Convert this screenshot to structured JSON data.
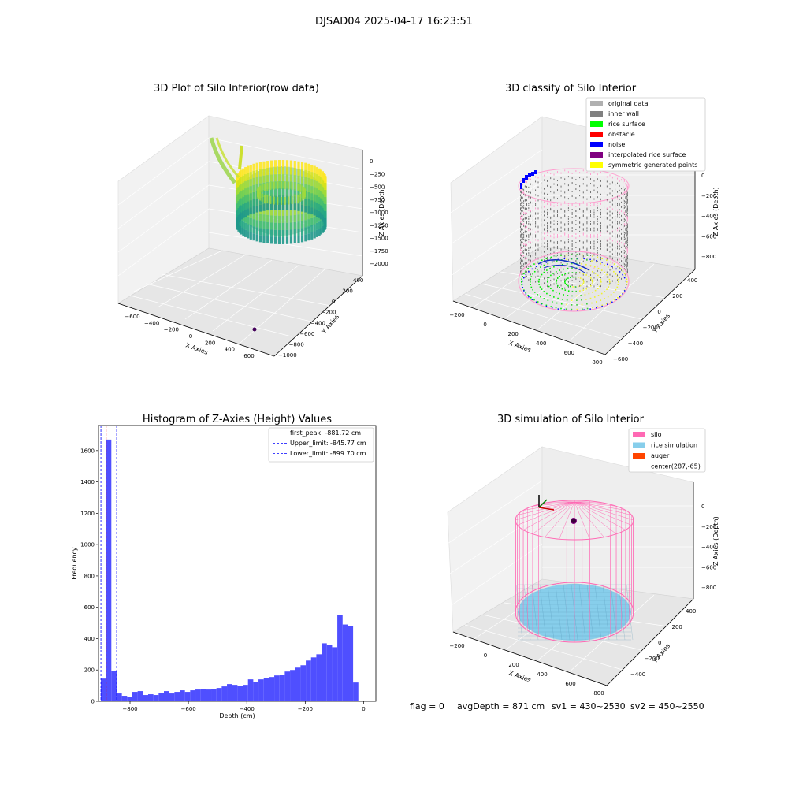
{
  "suptitle": "DJSAD04 2025-04-17 16:23:51",
  "footer": {
    "flag": "flag = 0",
    "avg": "avgDepth = 871 cm",
    "sv1": "sv1 = 430~2530",
    "sv2": "sv2 = 450~2550"
  },
  "colors": {
    "hist_bar": "#4f4fff",
    "peak_line": "#ff0000",
    "limit_line": "#0000ff",
    "silo": "#ff69b4",
    "rice_sim": "#87ceeb",
    "auger": "#ff4500",
    "pane_light": "#f2f2f2",
    "pane_dark": "#e6e6e6"
  },
  "panels": {
    "raw": {
      "title": "3D Plot of Silo Interior(row data)",
      "x_label": "X Axies",
      "y_label": "Y Axies",
      "z_label": "Z Axies (Depth)",
      "x_ticks": [
        "−600",
        "−400",
        "−200",
        "0",
        "200",
        "400",
        "600"
      ],
      "y_ticks": [
        "400",
        "200",
        "0",
        "−200",
        "−400",
        "−600",
        "−800",
        "−1000"
      ],
      "z_ticks": [
        "0",
        "−250",
        "−500",
        "−750",
        "−1000",
        "−1250",
        "−1500",
        "−1750",
        "−2000"
      ]
    },
    "classify": {
      "title": "3D classify of Silo Interior",
      "x_label": "X Axies",
      "y_label": "Y Axies",
      "z_label": "Z Axies (Depth)",
      "x_ticks": [
        "−200",
        "0",
        "200",
        "400",
        "600",
        "800"
      ],
      "y_ticks": [
        "400",
        "200",
        "0",
        "−200",
        "−400",
        "−600"
      ],
      "z_ticks": [
        "0",
        "−200",
        "−400",
        "−600",
        "−800"
      ],
      "legend": [
        {
          "label": "original data",
          "color": "#b0b0b0"
        },
        {
          "label": "inner wall",
          "color": "#808080"
        },
        {
          "label": "rice surface",
          "color": "#00ff00"
        },
        {
          "label": "obstacle",
          "color": "#ff0000"
        },
        {
          "label": "noise",
          "color": "#0000ff"
        },
        {
          "label": "interpolated rice surface",
          "color": "#800080"
        },
        {
          "label": "symmetric generated points",
          "color": "#ffff00"
        }
      ]
    },
    "sim": {
      "title": "3D simulation of Silo Interior",
      "x_label": "X Axies",
      "y_label": "Y Axies",
      "z_label": "Z Axies (Depth)",
      "x_ticks": [
        "−200",
        "0",
        "200",
        "400",
        "600",
        "800"
      ],
      "y_ticks": [
        "400",
        "200",
        "0",
        "−200",
        "−400"
      ],
      "z_ticks": [
        "0",
        "−200",
        "−400",
        "−600",
        "−800"
      ],
      "legend": [
        {
          "label": "silo",
          "color": "#ff69b4"
        },
        {
          "label": "rice simulation",
          "color": "#87ceeb"
        },
        {
          "label": "auger",
          "color": "#ff4500"
        },
        {
          "label": "center(287,-65)",
          "color": ""
        }
      ]
    }
  },
  "chart_data": {
    "type": "bar",
    "title": "Histogram of Z-Axies (Height) Values",
    "xlabel": "Depth (cm)",
    "ylabel": "Frequency",
    "xlim": [
      -908,
      42
    ],
    "ylim": [
      0,
      1760
    ],
    "x_ticks": [
      -800,
      -600,
      -400,
      -200,
      0
    ],
    "y_ticks": [
      0,
      200,
      400,
      600,
      800,
      1000,
      1200,
      1400,
      1600
    ],
    "bin_start": -900,
    "bin_width": 18,
    "values": [
      145,
      1670,
      195,
      50,
      35,
      30,
      60,
      65,
      40,
      45,
      40,
      55,
      65,
      50,
      60,
      70,
      60,
      70,
      75,
      78,
      75,
      80,
      85,
      95,
      110,
      105,
      100,
      105,
      140,
      125,
      140,
      150,
      155,
      165,
      170,
      190,
      200,
      215,
      230,
      260,
      280,
      300,
      370,
      360,
      345,
      550,
      490,
      480,
      120
    ],
    "vlines": [
      {
        "label": "first_peak: -881.72 cm",
        "x": -881.72,
        "color": "#ff0000"
      },
      {
        "label": "Upper_limit: -845.77 cm",
        "x": -845.77,
        "color": "#0000ff"
      },
      {
        "label": "Lower_limit: -899.70 cm",
        "x": -899.7,
        "color": "#0000ff"
      }
    ]
  }
}
